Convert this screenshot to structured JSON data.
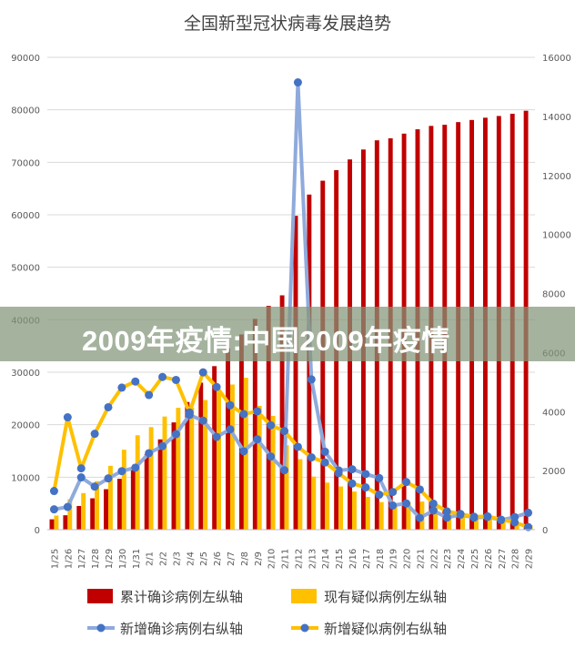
{
  "chart_data": {
    "type": "bar+line",
    "title": "全国新型冠状病毒发展趋势",
    "categories": [
      "1/25",
      "1/26",
      "1/27",
      "1/28",
      "1/29",
      "1/30",
      "1/31",
      "2/1",
      "2/2",
      "2/3",
      "2/4",
      "2/5",
      "2/6",
      "2/7",
      "2/8",
      "2/9",
      "2/10",
      "2/11",
      "2/12",
      "2/13",
      "2/14",
      "2/15",
      "2/16",
      "2/17",
      "2/18",
      "2/19",
      "2/20",
      "2/21",
      "2/22",
      "2/23",
      "2/24",
      "2/25",
      "2/26",
      "2/27",
      "2/28",
      "2/29"
    ],
    "left_axis": {
      "range": [
        0,
        90000
      ],
      "ticks": [
        "0",
        "10000",
        "20000",
        "30000",
        "40000",
        "50000",
        "60000",
        "70000",
        "80000",
        "90000"
      ]
    },
    "right_axis": {
      "range": [
        0,
        16000
      ],
      "ticks": [
        "0",
        "2000",
        "4000",
        "6000",
        "8000",
        "10000",
        "12000",
        "14000",
        "16000"
      ]
    },
    "grid": true,
    "legend_placement": "bottom",
    "series": [
      {
        "name": "累计确诊病例左纵轴",
        "type": "bar",
        "axis": "left",
        "color": "#c00000",
        "values": [
          1975,
          2744,
          4515,
          5974,
          7711,
          9692,
          11791,
          14380,
          17205,
          20438,
          24324,
          28018,
          31161,
          34546,
          37198,
          40171,
          42638,
          44653,
          59804,
          63851,
          66492,
          68500,
          70548,
          72436,
          74185,
          74576,
          75465,
          76288,
          76936,
          77150,
          77658,
          78064,
          78497,
          78824,
          79251,
          79824
        ]
      },
      {
        "name": "现有疑似病例左纵轴",
        "type": "bar",
        "axis": "left",
        "color": "#ffc000",
        "values": [
          2684,
          5794,
          6973,
          9239,
          12167,
          15238,
          17988,
          19544,
          21558,
          23214,
          23260,
          24702,
          26359,
          27657,
          28942,
          23589,
          21675,
          16067,
          13435,
          10109,
          8969,
          8228,
          7264,
          6242,
          5248,
          4922,
          5206,
          5365,
          4148,
          3434,
          2824,
          2491,
          2358,
          2308,
          1418,
          851
        ]
      },
      {
        "name": "新增确诊病例右纵轴",
        "type": "line",
        "axis": "right",
        "color": "#8faadc",
        "marker": "#4472c4",
        "values": [
          688,
          769,
          1771,
          1459,
          1737,
          1982,
          2102,
          2590,
          2829,
          3235,
          3887,
          3694,
          3143,
          3399,
          2656,
          3062,
          2478,
          2015,
          15152,
          5090,
          2641,
          2009,
          2048,
          1886,
          1749,
          820,
          889,
          397,
          648,
          409,
          508,
          406,
          433,
          327,
          427,
          573
        ]
      },
      {
        "name": "新增疑似病例右纵轴",
        "type": "line",
        "axis": "right",
        "color": "#ffc000",
        "marker": "#4472c4",
        "values": [
          1309,
          3806,
          2077,
          3248,
          4148,
          4812,
          5019,
          4562,
          5173,
          5072,
          3971,
          5328,
          4833,
          4214,
          3916,
          4008,
          3536,
          3342,
          2807,
          2450,
          2277,
          1918,
          1563,
          1432,
          1185,
          1277,
          1614,
          1361,
          882,
          620,
          530,
          439,
          452,
          340,
          248,
          90
        ]
      }
    ]
  },
  "watermark": "2009年疫情:中国2009年疫情"
}
